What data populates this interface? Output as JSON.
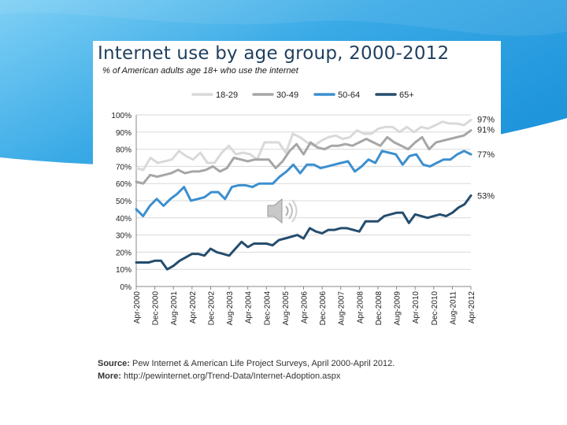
{
  "colors": {
    "banner_light": "#6cc6f2",
    "banner_dark": "#1a8fd8",
    "age_18_29": "#d9d9d9",
    "age_30_49": "#a6a6a6",
    "age_50_64": "#3b8fcf",
    "age_65_plus": "#254d6e"
  },
  "chart_data": {
    "type": "line",
    "title": "Internet use by age group, 2000-2012",
    "subtitle": "% of American adults age 18+ who use the internet",
    "ylim": [
      0,
      100
    ],
    "y_ticks": [
      "0%",
      "10%",
      "20%",
      "30%",
      "40%",
      "50%",
      "60%",
      "70%",
      "80%",
      "90%",
      "100%"
    ],
    "x_ticks": [
      "Apr-2000",
      "Dec-2000",
      "Aug-2001",
      "Apr-2002",
      "Dec-2002",
      "Aug-2003",
      "Apr-2004",
      "Dec-2004",
      "Aug-2005",
      "Apr-2006",
      "Dec-2006",
      "Aug-2007",
      "Apr-2008",
      "Dec-2008",
      "Aug-2009",
      "Apr-2010",
      "Dec-2010",
      "Aug-2011",
      "Apr-2012"
    ],
    "legend_position": "top",
    "series": [
      {
        "name": "18-29",
        "color_key": "age_18_29",
        "end_label": "97%",
        "values": [
          69,
          68,
          75,
          72,
          73,
          74,
          79,
          76,
          74,
          78,
          72,
          72,
          78,
          82,
          77,
          78,
          77,
          74,
          84,
          84,
          84,
          78,
          89,
          87,
          84,
          82,
          85,
          87,
          88,
          86,
          87,
          91,
          89,
          89,
          92,
          93,
          93,
          90,
          93,
          90,
          93,
          92,
          94,
          96,
          95,
          95,
          94,
          97
        ]
      },
      {
        "name": "30-49",
        "color_key": "age_30_49",
        "end_label": "91%",
        "values": [
          61,
          60,
          65,
          64,
          65,
          66,
          68,
          66,
          67,
          67,
          68,
          70,
          67,
          69,
          75,
          74,
          73,
          74,
          74,
          74,
          69,
          73,
          79,
          83,
          77,
          84,
          81,
          80,
          82,
          82,
          83,
          82,
          84,
          86,
          84,
          82,
          87,
          84,
          82,
          80,
          84,
          87,
          80,
          84,
          85,
          86,
          87,
          88,
          91
        ]
      },
      {
        "name": "50-64",
        "color_key": "age_50_64",
        "end_label": "77%",
        "values": [
          45,
          41,
          47,
          51,
          47,
          51,
          54,
          58,
          50,
          51,
          52,
          55,
          55,
          51,
          58,
          59,
          59,
          58,
          60,
          60,
          60,
          64,
          67,
          71,
          66,
          71,
          71,
          69,
          70,
          71,
          72,
          73,
          67,
          70,
          74,
          72,
          79,
          78,
          77,
          71,
          76,
          77,
          71,
          70,
          72,
          74,
          74,
          77,
          79,
          77
        ]
      },
      {
        "name": "65+",
        "color_key": "age_65_plus",
        "end_label": "53%",
        "values": [
          14,
          14,
          14,
          15,
          15,
          10,
          12,
          15,
          17,
          19,
          19,
          18,
          22,
          20,
          19,
          18,
          22,
          26,
          23,
          25,
          25,
          25,
          24,
          27,
          28,
          29,
          30,
          28,
          34,
          32,
          31,
          33,
          33,
          34,
          34,
          33,
          32,
          38,
          38,
          38,
          41,
          42,
          43,
          43,
          37,
          42,
          41,
          40,
          41,
          42,
          41,
          43,
          46,
          48,
          53
        ]
      }
    ]
  },
  "footer": {
    "source_label": "Source:",
    "source_text": " Pew Internet & American Life Project Surveys, April 2000-April 2012.",
    "more_label": "More:",
    "more_text": " http://pewinternet.org/Trend-Data/Internet-Adoption.aspx"
  }
}
